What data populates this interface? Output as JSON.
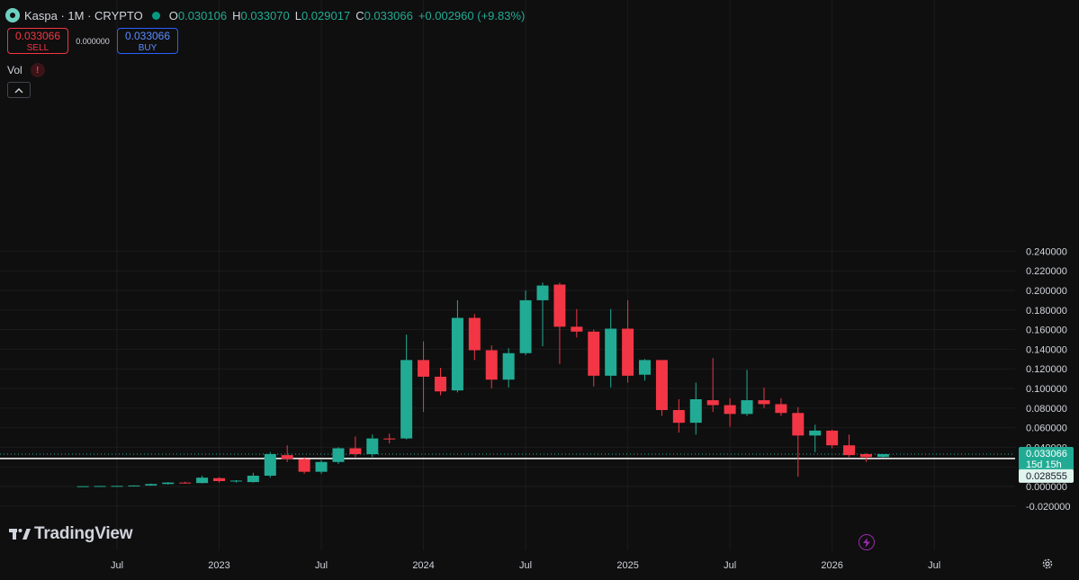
{
  "header": {
    "symbol_title": "Kaspa · 1M · CRYPTO",
    "ohlc": {
      "o_label": "O",
      "o_value": "0.030106",
      "h_label": "H",
      "h_value": "0.033070",
      "l_label": "L",
      "l_value": "0.029017",
      "c_label": "C",
      "c_value": "0.033066",
      "change": "+0.002960 (+9.83%)"
    }
  },
  "trade": {
    "sell_price": "0.033066",
    "sell_label": "SELL",
    "spread": "0.000000",
    "buy_price": "0.033066",
    "buy_label": "BUY"
  },
  "indicators": {
    "volume_label": "Vol",
    "warning_glyph": "!"
  },
  "branding": {
    "name": "TradingView"
  },
  "price_scale": {
    "current_price": "0.033066",
    "countdown": "15d 15h",
    "crosshair_price": "0.028555"
  },
  "colors": {
    "up": "#22ab94",
    "down": "#f23645",
    "background": "#0f0f0f",
    "text": "#d1d4dc"
  },
  "icons": {
    "symbol_logo": "kaspa-logo-icon",
    "status": "market-status-dot-icon",
    "collapse": "chevron-up-icon",
    "lightning": "lightning-icon",
    "settings": "gear-icon"
  },
  "chart_data": {
    "type": "candlestick",
    "interval": "1M",
    "y_ticks": [
      "0.240000",
      "0.220000",
      "0.200000",
      "0.180000",
      "0.160000",
      "0.140000",
      "0.120000",
      "0.100000",
      "0.080000",
      "0.060000",
      "0.040000",
      "0.020000",
      "0.000000",
      "-0.020000"
    ],
    "y_tick_values": [
      0.24,
      0.22,
      0.2,
      0.18,
      0.16,
      0.14,
      0.12,
      0.1,
      0.08,
      0.06,
      0.04,
      0.02,
      0.0,
      -0.02
    ],
    "ylim": [
      -0.025,
      0.245
    ],
    "x_ticks": [
      "Jul",
      "2023",
      "Jul",
      "2024",
      "Jul",
      "2025",
      "Jul",
      "2026",
      "Jul"
    ],
    "x_tick_months": [
      "2022-07",
      "2023-01",
      "2023-07",
      "2024-01",
      "2024-07",
      "2025-01",
      "2025-07",
      "2026-01",
      "2026-07"
    ],
    "x_range_months": [
      "2022-04",
      "2026-09"
    ],
    "crosshair_value": 0.028555,
    "last_price": 0.033066,
    "candles": [
      {
        "t": "2022-05",
        "o": 0.0002,
        "h": 0.0004,
        "l": 0.0001,
        "c": 0.0003
      },
      {
        "t": "2022-06",
        "o": 0.0003,
        "h": 0.0006,
        "l": 0.0002,
        "c": 0.0005
      },
      {
        "t": "2022-07",
        "o": 0.0005,
        "h": 0.0008,
        "l": 0.0003,
        "c": 0.0006
      },
      {
        "t": "2022-08",
        "o": 0.0006,
        "h": 0.0012,
        "l": 0.0005,
        "c": 0.001
      },
      {
        "t": "2022-09",
        "o": 0.001,
        "h": 0.003,
        "l": 0.0008,
        "c": 0.0025
      },
      {
        "t": "2022-10",
        "o": 0.0025,
        "h": 0.0045,
        "l": 0.002,
        "c": 0.004
      },
      {
        "t": "2022-11",
        "o": 0.004,
        "h": 0.0048,
        "l": 0.0028,
        "c": 0.0035
      },
      {
        "t": "2022-12",
        "o": 0.0035,
        "h": 0.011,
        "l": 0.003,
        "c": 0.009
      },
      {
        "t": "2023-01",
        "o": 0.0085,
        "h": 0.0095,
        "l": 0.004,
        "c": 0.0055
      },
      {
        "t": "2023-02",
        "o": 0.0055,
        "h": 0.0065,
        "l": 0.004,
        "c": 0.006
      },
      {
        "t": "2023-03",
        "o": 0.0045,
        "h": 0.014,
        "l": 0.004,
        "c": 0.011
      },
      {
        "t": "2023-04",
        "o": 0.011,
        "h": 0.035,
        "l": 0.009,
        "c": 0.033
      },
      {
        "t": "2023-05",
        "o": 0.032,
        "h": 0.042,
        "l": 0.025,
        "c": 0.028
      },
      {
        "t": "2023-06",
        "o": 0.028,
        "h": 0.03,
        "l": 0.013,
        "c": 0.015
      },
      {
        "t": "2023-07",
        "o": 0.015,
        "h": 0.027,
        "l": 0.013,
        "c": 0.025
      },
      {
        "t": "2023-08",
        "o": 0.025,
        "h": 0.04,
        "l": 0.023,
        "c": 0.039
      },
      {
        "t": "2023-09",
        "o": 0.039,
        "h": 0.051,
        "l": 0.03,
        "c": 0.033
      },
      {
        "t": "2023-10",
        "o": 0.033,
        "h": 0.053,
        "l": 0.03,
        "c": 0.049
      },
      {
        "t": "2023-11",
        "o": 0.049,
        "h": 0.054,
        "l": 0.044,
        "c": 0.048
      },
      {
        "t": "2023-12",
        "o": 0.049,
        "h": 0.155,
        "l": 0.048,
        "c": 0.129
      },
      {
        "t": "2024-01",
        "o": 0.129,
        "h": 0.148,
        "l": 0.076,
        "c": 0.112
      },
      {
        "t": "2024-02",
        "o": 0.112,
        "h": 0.121,
        "l": 0.093,
        "c": 0.097
      },
      {
        "t": "2024-03",
        "o": 0.098,
        "h": 0.19,
        "l": 0.096,
        "c": 0.172
      },
      {
        "t": "2024-04",
        "o": 0.172,
        "h": 0.176,
        "l": 0.129,
        "c": 0.139
      },
      {
        "t": "2024-05",
        "o": 0.139,
        "h": 0.144,
        "l": 0.1,
        "c": 0.109
      },
      {
        "t": "2024-06",
        "o": 0.109,
        "h": 0.141,
        "l": 0.101,
        "c": 0.136
      },
      {
        "t": "2024-07",
        "o": 0.136,
        "h": 0.2,
        "l": 0.134,
        "c": 0.19
      },
      {
        "t": "2024-08",
        "o": 0.19,
        "h": 0.208,
        "l": 0.143,
        "c": 0.205
      },
      {
        "t": "2024-09",
        "o": 0.206,
        "h": 0.208,
        "l": 0.125,
        "c": 0.163
      },
      {
        "t": "2024-10",
        "o": 0.163,
        "h": 0.181,
        "l": 0.152,
        "c": 0.158
      },
      {
        "t": "2024-11",
        "o": 0.158,
        "h": 0.16,
        "l": 0.102,
        "c": 0.113
      },
      {
        "t": "2024-12",
        "o": 0.113,
        "h": 0.181,
        "l": 0.101,
        "c": 0.161
      },
      {
        "t": "2025-01",
        "o": 0.161,
        "h": 0.19,
        "l": 0.106,
        "c": 0.113
      },
      {
        "t": "2025-02",
        "o": 0.114,
        "h": 0.13,
        "l": 0.108,
        "c": 0.129
      },
      {
        "t": "2025-03",
        "o": 0.129,
        "h": 0.129,
        "l": 0.072,
        "c": 0.078
      },
      {
        "t": "2025-04",
        "o": 0.078,
        "h": 0.089,
        "l": 0.055,
        "c": 0.065
      },
      {
        "t": "2025-05",
        "o": 0.065,
        "h": 0.106,
        "l": 0.053,
        "c": 0.089
      },
      {
        "t": "2025-06",
        "o": 0.088,
        "h": 0.131,
        "l": 0.076,
        "c": 0.083
      },
      {
        "t": "2025-07",
        "o": 0.083,
        "h": 0.09,
        "l": 0.061,
        "c": 0.074
      },
      {
        "t": "2025-08",
        "o": 0.074,
        "h": 0.119,
        "l": 0.072,
        "c": 0.088
      },
      {
        "t": "2025-09",
        "o": 0.088,
        "h": 0.101,
        "l": 0.08,
        "c": 0.084
      },
      {
        "t": "2025-10",
        "o": 0.084,
        "h": 0.09,
        "l": 0.072,
        "c": 0.075
      },
      {
        "t": "2025-11",
        "o": 0.075,
        "h": 0.081,
        "l": 0.01,
        "c": 0.052
      },
      {
        "t": "2025-12",
        "o": 0.052,
        "h": 0.063,
        "l": 0.035,
        "c": 0.057
      },
      {
        "t": "2026-01",
        "o": 0.057,
        "h": 0.058,
        "l": 0.039,
        "c": 0.042
      },
      {
        "t": "2026-02",
        "o": 0.042,
        "h": 0.053,
        "l": 0.03,
        "c": 0.032
      },
      {
        "t": "2026-03",
        "o": 0.033,
        "h": 0.034,
        "l": 0.025,
        "c": 0.03
      },
      {
        "t": "2026-04",
        "o": 0.030106,
        "h": 0.03307,
        "l": 0.029017,
        "c": 0.033066
      }
    ]
  }
}
